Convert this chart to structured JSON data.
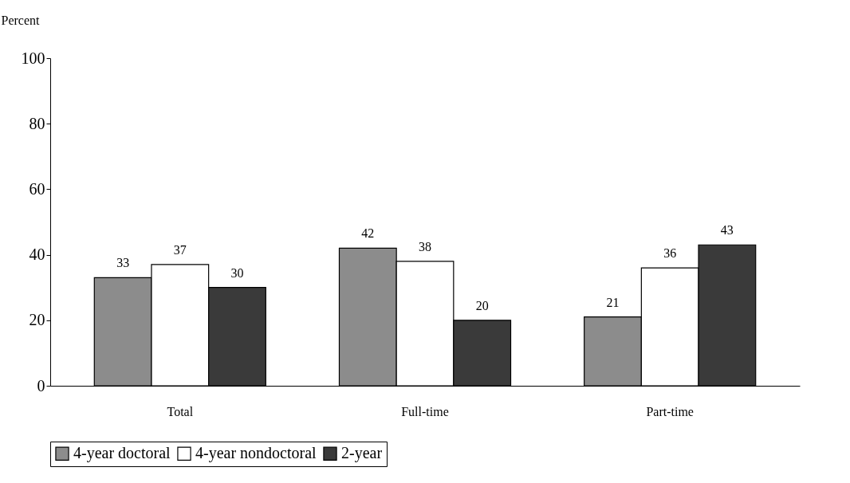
{
  "chart_data": {
    "type": "bar",
    "ylabel": "Percent",
    "categories": [
      "Total",
      "Full-time",
      "Part-time"
    ],
    "series": [
      {
        "name": "4-year doctoral",
        "color": "#8c8c8c",
        "values": [
          33,
          42,
          21
        ]
      },
      {
        "name": "4-year nondoctoral",
        "color": "#ffffff",
        "values": [
          37,
          38,
          36
        ]
      },
      {
        "name": "2-year",
        "color": "#3a3a3a",
        "values": [
          30,
          20,
          43
        ]
      }
    ],
    "ylim": [
      0,
      100
    ],
    "yticks": [
      0,
      20,
      40,
      60,
      80,
      100
    ],
    "grid": false,
    "legend": "bottom",
    "data_labels": true
  }
}
